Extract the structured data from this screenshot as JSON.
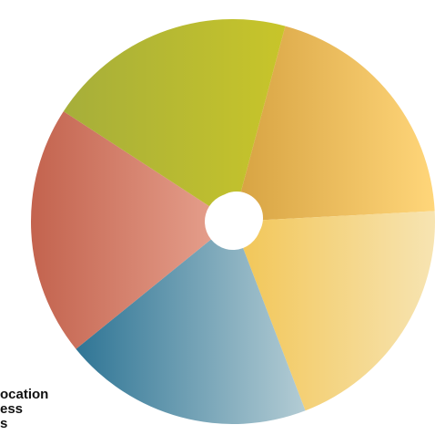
{
  "chart_data": {
    "type": "pie",
    "variant": "donut",
    "title": "",
    "slices": [
      {
        "value": 20,
        "color": "#f2c069"
      },
      {
        "value": 20,
        "color": "#f6d488"
      },
      {
        "value": 20,
        "color": "#8fb6c6"
      },
      {
        "value": 20,
        "color": "#d9806d"
      },
      {
        "value": 20,
        "color": "#b8bb34"
      }
    ],
    "partial_labels": [
      "ocation",
      "ess",
      "s"
    ]
  }
}
